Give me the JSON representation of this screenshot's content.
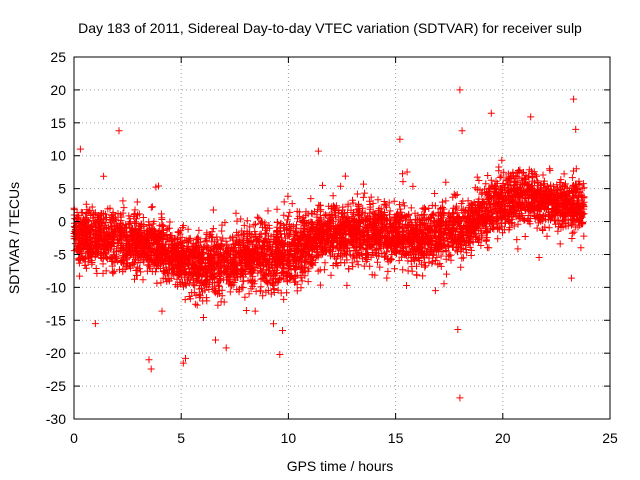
{
  "chart_data": {
    "type": "scatter",
    "title": "Day 183 of 2011, Sidereal Day-to-day VTEC variation (SDTVAR) for receiver sulp",
    "xlabel": "GPS time / hours",
    "ylabel": "SDTVAR / TECUs",
    "xlim": [
      0,
      25
    ],
    "ylim": [
      -30,
      25
    ],
    "x_ticks": [
      0,
      5,
      10,
      15,
      20,
      25
    ],
    "y_ticks": [
      -30,
      -25,
      -20,
      -15,
      -10,
      -5,
      0,
      5,
      10,
      15,
      20,
      25
    ],
    "grid": true,
    "marker": "+",
    "color": "#ff0000",
    "series": [
      {
        "name": "SDTVAR",
        "trend": {
          "x": [
            0,
            1,
            2,
            3,
            4,
            5,
            6,
            7,
            8,
            9,
            10,
            11,
            12,
            13,
            14,
            15,
            16,
            17,
            18,
            19,
            20,
            21,
            22,
            23,
            23.8
          ],
          "center": [
            -2,
            -2.5,
            -3,
            -3,
            -4,
            -5.5,
            -7,
            -6.5,
            -5,
            -5,
            -5,
            -3,
            -2,
            -1.5,
            -1.5,
            -2,
            -2.5,
            -2,
            -1,
            1,
            3,
            4,
            3,
            2.5,
            2
          ],
          "spread": [
            4,
            4,
            4,
            4,
            4,
            4,
            4.5,
            4.5,
            4,
            5,
            5,
            4,
            4,
            4,
            4,
            4,
            4,
            4,
            4,
            4,
            4,
            4,
            3.5,
            3.5,
            3.5
          ]
        },
        "outliers": [
          {
            "x": 18.0,
            "y": 20.0
          },
          {
            "x": 18.0,
            "y": -26.8
          },
          {
            "x": 23.3,
            "y": 18.6
          },
          {
            "x": 2.1,
            "y": 13.8
          },
          {
            "x": 0.3,
            "y": 11.0
          },
          {
            "x": 3.5,
            "y": -21.0
          },
          {
            "x": 3.6,
            "y": -22.4
          },
          {
            "x": 5.1,
            "y": -21.5
          },
          {
            "x": 5.2,
            "y": -20.8
          },
          {
            "x": 17.9,
            "y": -16.4
          },
          {
            "x": 9.6,
            "y": -20.2
          },
          {
            "x": 11.4,
            "y": 10.7
          },
          {
            "x": 21.3,
            "y": 15.9
          },
          {
            "x": 23.4,
            "y": 14.0
          },
          {
            "x": 23.2,
            "y": -8.6
          },
          {
            "x": 7.1,
            "y": -19.2
          },
          {
            "x": 6.6,
            "y": -18.0
          },
          {
            "x": 1.0,
            "y": -15.5
          },
          {
            "x": 15.2,
            "y": 12.5
          },
          {
            "x": 18.1,
            "y": 13.8
          }
        ]
      }
    ]
  }
}
